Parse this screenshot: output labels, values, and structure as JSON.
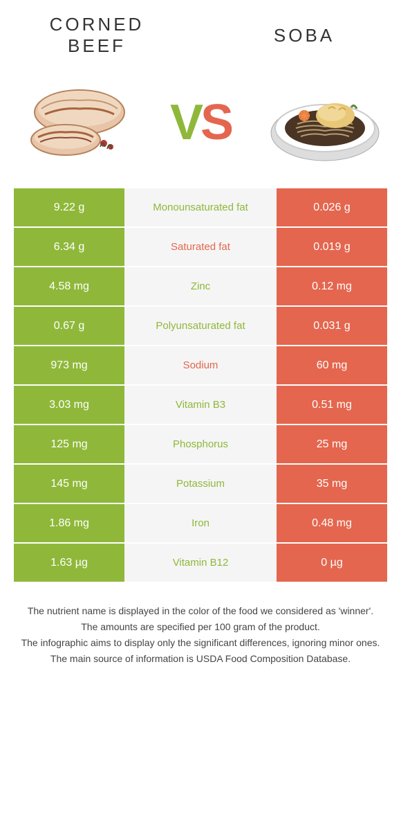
{
  "header": {
    "left_title": "CORNED BEEF",
    "right_title": "SOBA",
    "vs_v": "V",
    "vs_s": "S"
  },
  "colors": {
    "left": "#8fb83a",
    "right": "#e4664e",
    "mid_bg": "#f5f5f5",
    "text_white": "#ffffff",
    "footer_text": "#444444"
  },
  "nutrients": [
    {
      "left": "9.22 g",
      "label": "Monounsaturated fat",
      "right": "0.026 g",
      "winner": "left"
    },
    {
      "left": "6.34 g",
      "label": "Saturated fat",
      "right": "0.019 g",
      "winner": "right"
    },
    {
      "left": "4.58 mg",
      "label": "Zinc",
      "right": "0.12 mg",
      "winner": "left"
    },
    {
      "left": "0.67 g",
      "label": "Polyunsaturated fat",
      "right": "0.031 g",
      "winner": "left"
    },
    {
      "left": "973 mg",
      "label": "Sodium",
      "right": "60 mg",
      "winner": "right"
    },
    {
      "left": "3.03 mg",
      "label": "Vitamin B3",
      "right": "0.51 mg",
      "winner": "left"
    },
    {
      "left": "125 mg",
      "label": "Phosphorus",
      "right": "25 mg",
      "winner": "left"
    },
    {
      "left": "145 mg",
      "label": "Potassium",
      "right": "35 mg",
      "winner": "left"
    },
    {
      "left": "1.86 mg",
      "label": "Iron",
      "right": "0.48 mg",
      "winner": "left"
    },
    {
      "left": "1.63 µg",
      "label": "Vitamin B12",
      "right": "0 µg",
      "winner": "left"
    }
  ],
  "footer": {
    "line1": "The nutrient name is displayed in the color of the food we considered as 'winner'.",
    "line2": "The amounts are specified per 100 gram of the product.",
    "line3": "The infographic aims to display only the significant differences, ignoring minor ones.",
    "line4": "The main source of information is USDA Food Composition Database."
  }
}
